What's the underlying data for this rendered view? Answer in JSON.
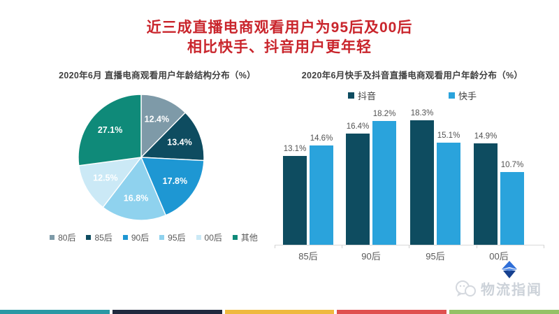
{
  "title": {
    "line1": "近三成直播电商观看用户为95后及00后",
    "line2": "相比快手、抖音用户更年轻",
    "color": "#c9252c"
  },
  "chart_data": [
    {
      "type": "pie",
      "title": "2020年6月 直播电商观看用户年龄结构分布（%）",
      "labels": [
        "80后",
        "85后",
        "90后",
        "95后",
        "00后",
        "其他"
      ],
      "values": [
        12.4,
        13.4,
        17.8,
        16.8,
        12.5,
        27.1
      ],
      "colors": [
        "#7e9aa8",
        "#0e4c60",
        "#1e97d3",
        "#8fd2ee",
        "#cbe9f6",
        "#0f8a79"
      ],
      "value_suffix": "%",
      "start_angle_deg": 0,
      "direction": "clockwise",
      "legend_position": "bottom"
    },
    {
      "type": "bar",
      "title": "2020年6月快手及抖音直播电商观看用户年龄分布（%）",
      "categories": [
        "85后",
        "90后",
        "95后",
        "00后"
      ],
      "series": [
        {
          "name": "抖音",
          "color": "#0e4c60",
          "values": [
            13.1,
            16.4,
            18.3,
            14.9
          ]
        },
        {
          "name": "快手",
          "color": "#2aa3dc",
          "values": [
            14.6,
            18.2,
            15.1,
            10.7
          ]
        }
      ],
      "value_suffix": "%",
      "ylim": [
        0,
        19.6
      ],
      "grid": false,
      "legend_position": "top",
      "axis_color": "#d9d9d9"
    }
  ],
  "watermark": {
    "text": "物流指闻",
    "wechat_icon": "wechat-bubbles-icon",
    "logo_icon": "blue-diamond-logo"
  },
  "footer_stripes": {
    "colors": [
      "#2a98a4",
      "#20293e",
      "#efb93f",
      "#e0504f",
      "#94c266"
    ]
  }
}
